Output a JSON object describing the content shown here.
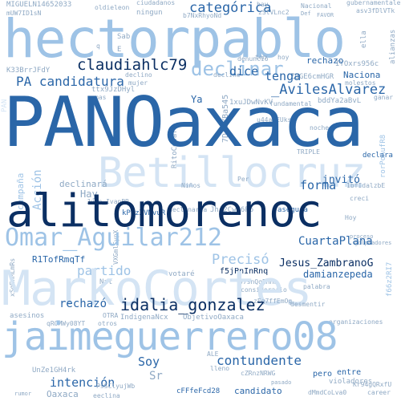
{
  "words": {
    "hectorpablo": "hectorpablo",
    "PANOaxaca": "PANOaxaca",
    "alitomorenoc": "alitomorenoc",
    "MarkoCortes": "MarkoCortes",
    "jaimeguerrero08": "jaimeguerrero08",
    "Betillocruz": "Betillocruz",
    "Omar_Aguilar212": "Omar_Aguilar212",
    "idalia_gonzalez": "idalia_gonzalez",
    "claudiahlc79": "claudiahlc79",
    "declinar": "declinar",
    "categorica": "categórica",
    "PA_candidatura": "PA candidatura",
    "AvilesAlvarez": "_AvilesAlvarez",
    "tenga": "tenga",
    "dice": "dice",
    "contundente": "contundente",
    "intencion": "intención",
    "rechazo": "rechazó",
    "Soy": "Soy",
    "Preciso": "Precisó",
    "Jesus_ZambranoG": "Jesus_ZambranoG",
    "CuartaPlana": "CuartaPlana",
    "forma": "forma",
    "invito": "invitó",
    "Naciona": "Naciona",
    "damianzepeda": "damianzepeda",
    "partido": "partido",
    "Accion": "Acción",
    "Hay": "Hay",
    "campana": "campaña",
    "Ya": "Ya",
    "noche": "noche",
    "declara": "declara",
    "asegura": "asegura",
    "declinaria": "declinaría",
    "declinara": "declinará",
    "MIGUELN14652033": "MIGUELN14652033",
    "ciudadanos": "ciudadanos",
    "oldieleon": "oldieleon",
    "K33BrrJFdY": "K33BrrJFdY",
    "ttx9JzDHyl": "ttx9JzDHyl",
    "kP7zXVNvuR": "kP7zXVNvuR",
    "f5jPnInRnq": "f5jPnInRnq",
    "R1TofRmqTf": "R1TofRmqTf",
    "UnZe1GH4rk": "UnZe1GH4rk",
    "IndigenaNcx": "IndigenaNcx",
    "ObjetivoOaxaca": "ObjetivoOaxaca",
    "candidato": "candidato",
    "Oaxaca": "Oaxaca",
    "pero": "pero",
    "entre": "entre",
    "violadores": "violadores",
    "cFFfeFcd28": "cFFfeFcd28",
    "votare": "votaré",
    "asesinos": "asesinos",
    "otros": "otros",
    "declino": "declino",
    "mujer": "mujer",
    "fundamental": "fundamental",
    "bddYa2aBvL": "bddYa2aBvL",
    "TRIPLE": "TRIPLE",
    "rechazo_small": "rechazo",
    "ganar": "ganar",
    "molestos": "molestos",
    "ningun": "ningun",
    "Sab": "Sab",
    "Def": "Def",
    "Nacional": "Nacional",
    "gubernamentales": "gubernamentales",
    "alianzas": "alianzas",
    "ella": "ella",
    "denuncio": "denunció",
    "ten": "ten",
    "hoy": "hoy",
    "ZQGE6cmHGR": "ZQGE6cmHGR",
    "IYOxrs956c": "IYOxrs956c",
    "xuJDwNvKV": "1xuJDwNvKV",
    "u44aoEUkso": "u44aoEUkso",
    "DAOYBa545": "7DAOYBa545",
    "RitoCesar": "RitoCesar",
    "Ninos": "Niños",
    "Jhj2CwR6P6": "Jhj2CwR6P6",
    "Per": "Per",
    "creci": "creci",
    "punto": "punto",
    "Hoy": "Hoy",
    "buf": "1bfIdalzbE",
    "rorPoAufR8": "rorPoAufR8",
    "proceso": "proceso",
    "golpeadores": "golpeadores",
    "palabra": "palabra",
    "considerario": "considerario",
    "zEg7ffEmOg": "zEg7ffEmOg",
    "OTRA": "OTRA",
    "qROMWy08YT": "qROMWy08YT",
    "desmentir": "desmentir",
    "organizaciones": "organizaciones",
    "ALE": "ALE",
    "lleno": "lleno",
    "cZRnzNRWG": "cZRnzNRWG",
    "pasado": "pasado",
    "career": "career",
    "eeclina": "eeclina",
    "PsSClyujWb": "PsSClyujWb",
    "dMmdCoLva0": "dMmdCoLva0",
    "Kr94gQRxfU": "Kr94gQRxfU",
    "rumor": "rumor",
    "PAN": "PAN",
    "decline": "decline",
    "Nat": "Nat",
    "XSqEnMLmRs": "xSqEnMLmRs",
    "f66z2RI7": "f66z2RI7",
    "mUW7ID1sN": "mUW7ID1sN",
    "asv3fDlVTk": "asv3fDlVTk",
    "q": "q",
    "E": "E",
    "Vt": "Vt",
    "FAVOR": "FAVOR",
    "Juan_IvanBR": "Juan_IvanBR",
    "97snQqEHHa": "97snQqEHHa",
    "VXGmlSypX": "VXGmlSypX",
    "decimos": "decimos",
    "Ng6": "Ng6",
    "Sr": "Sr",
    "mas": "mas",
    "hay": "hay",
    "zSlVLnc2": "zSlVLnc2",
    "b7NxRhyoNd": "b7NxRhyoNd"
  }
}
